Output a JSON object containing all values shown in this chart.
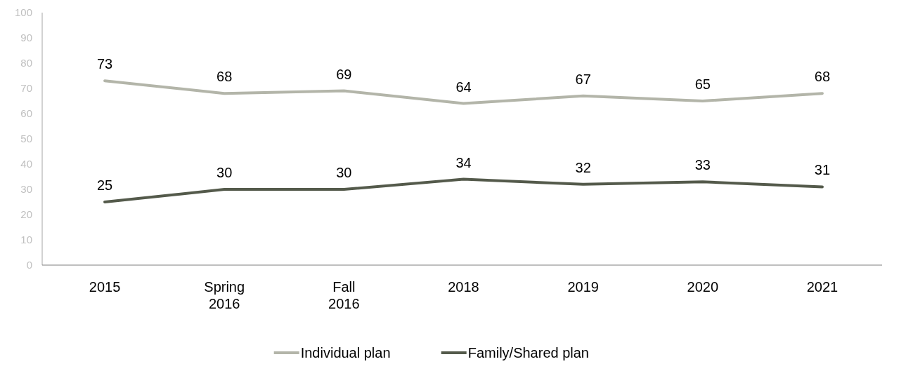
{
  "chart_data": {
    "type": "line",
    "categories": [
      "2015",
      "Spring 2016",
      "Fall 2016",
      "2018",
      "2019",
      "2020",
      "2021"
    ],
    "series": [
      {
        "name": "Individual plan",
        "color": "#b3b5a9",
        "values": [
          73,
          68,
          69,
          64,
          67,
          65,
          68
        ]
      },
      {
        "name": "Family/Shared plan",
        "color": "#545a4b",
        "values": [
          25,
          30,
          30,
          34,
          32,
          33,
          31
        ]
      }
    ],
    "ylim": [
      0,
      100
    ],
    "yticks": [
      0,
      10,
      20,
      30,
      40,
      50,
      60,
      70,
      80,
      90,
      100
    ],
    "data_labels": true,
    "legend": "bottom",
    "grid": false,
    "marker": "none",
    "line_style": "solid"
  }
}
